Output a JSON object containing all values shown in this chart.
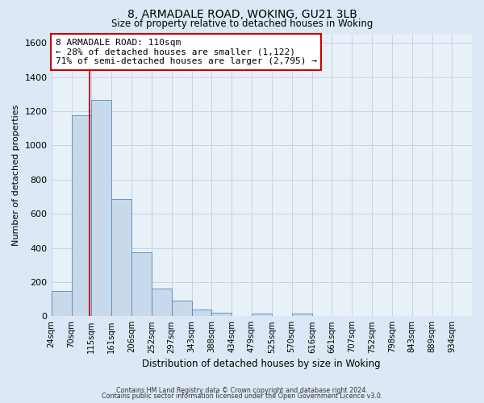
{
  "title": "8, ARMADALE ROAD, WOKING, GU21 3LB",
  "subtitle": "Size of property relative to detached houses in Woking",
  "xlabel": "Distribution of detached houses by size in Woking",
  "ylabel": "Number of detached properties",
  "bin_labels": [
    "24sqm",
    "70sqm",
    "115sqm",
    "161sqm",
    "206sqm",
    "252sqm",
    "297sqm",
    "343sqm",
    "388sqm",
    "434sqm",
    "479sqm",
    "525sqm",
    "570sqm",
    "616sqm",
    "661sqm",
    "707sqm",
    "752sqm",
    "798sqm",
    "843sqm",
    "889sqm",
    "934sqm"
  ],
  "bar_heights": [
    148,
    1175,
    1265,
    685,
    375,
    163,
    93,
    38,
    22,
    0,
    15,
    0,
    14,
    0,
    0,
    0,
    0,
    0,
    0,
    0,
    0
  ],
  "bar_color": "#c8d9ec",
  "bar_edge_color": "#5588bb",
  "property_line_x": 110,
  "property_line_color": "#cc0000",
  "annotation_line1": "8 ARMADALE ROAD: 110sqm",
  "annotation_line2": "← 28% of detached houses are smaller (1,122)",
  "annotation_line3": "71% of semi-detached houses are larger (2,795) →",
  "annotation_box_color": "#ffffff",
  "annotation_box_edge": "#cc0000",
  "ylim": [
    0,
    1650
  ],
  "yticks": [
    0,
    200,
    400,
    600,
    800,
    1000,
    1200,
    1400,
    1600
  ],
  "footer1": "Contains HM Land Registry data © Crown copyright and database right 2024.",
  "footer2": "Contains public sector information licensed under the Open Government Licence v3.0.",
  "bg_color": "#dce8f5",
  "plot_bg_color": "#e8f0f8",
  "grid_color": "#c8d4e0",
  "bin_starts": [
    24,
    70,
    115,
    161,
    206,
    252,
    297,
    343,
    388,
    434,
    479,
    525,
    570,
    616,
    661,
    707,
    752,
    798,
    843,
    889,
    934
  ],
  "xlim_left": 24,
  "xlim_right": 979
}
